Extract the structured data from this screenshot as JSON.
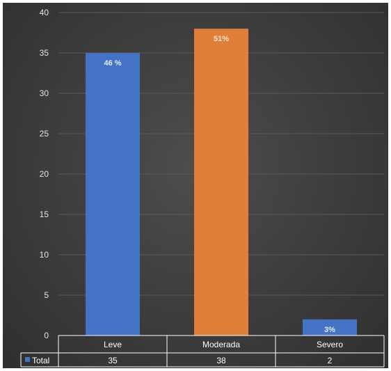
{
  "chart_data": {
    "type": "bar",
    "categories": [
      "Leve",
      "Moderada",
      "Severo"
    ],
    "series": [
      {
        "name": "Total",
        "values": [
          35,
          38,
          2
        ],
        "colors": [
          "#4472c4",
          "#e07f3a",
          "#4472c4"
        ],
        "data_labels": [
          "46 %",
          "51%",
          "3%"
        ]
      }
    ],
    "ylim": [
      0,
      40
    ],
    "yticks": [
      0,
      5,
      10,
      15,
      20,
      25,
      30,
      35,
      40
    ],
    "grid": true,
    "legend": "data-table-left",
    "data_table": true,
    "label_colors": [
      "#e8eefb",
      "#fbe5d2",
      "#e8eefb"
    ]
  },
  "colors": {
    "background": "#3c3c3c",
    "grid": "#5a5a5a",
    "legend_key": "#4472c4"
  }
}
